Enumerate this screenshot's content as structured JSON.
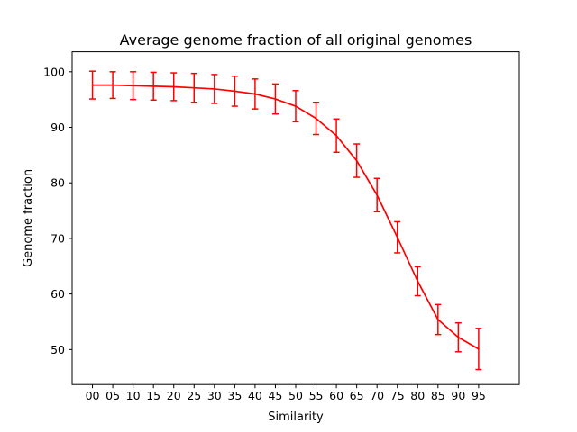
{
  "chart_data": {
    "type": "line",
    "title": "Average genome fraction of all original genomes",
    "xlabel": "Similarity",
    "ylabel": "Genome fraction",
    "categories": [
      "00",
      "05",
      "10",
      "15",
      "20",
      "25",
      "30",
      "35",
      "40",
      "45",
      "50",
      "55",
      "60",
      "65",
      "70",
      "75",
      "80",
      "85",
      "90",
      "95"
    ],
    "yticks": [
      50,
      60,
      70,
      80,
      90,
      100
    ],
    "ylim": [
      43.7,
      103.6
    ],
    "grid": false,
    "series": [
      {
        "color": "#ff0000",
        "values": [
          97.6,
          97.6,
          97.5,
          97.4,
          97.3,
          97.1,
          96.9,
          96.5,
          96.0,
          95.1,
          93.8,
          91.6,
          88.5,
          84.0,
          77.8,
          70.2,
          62.3,
          55.4,
          52.2,
          50.1
        ],
        "errors": [
          2.5,
          2.4,
          2.5,
          2.5,
          2.5,
          2.6,
          2.6,
          2.7,
          2.7,
          2.7,
          2.8,
          2.9,
          3.0,
          3.0,
          3.0,
          2.8,
          2.6,
          2.7,
          2.6,
          3.7
        ]
      }
    ]
  }
}
